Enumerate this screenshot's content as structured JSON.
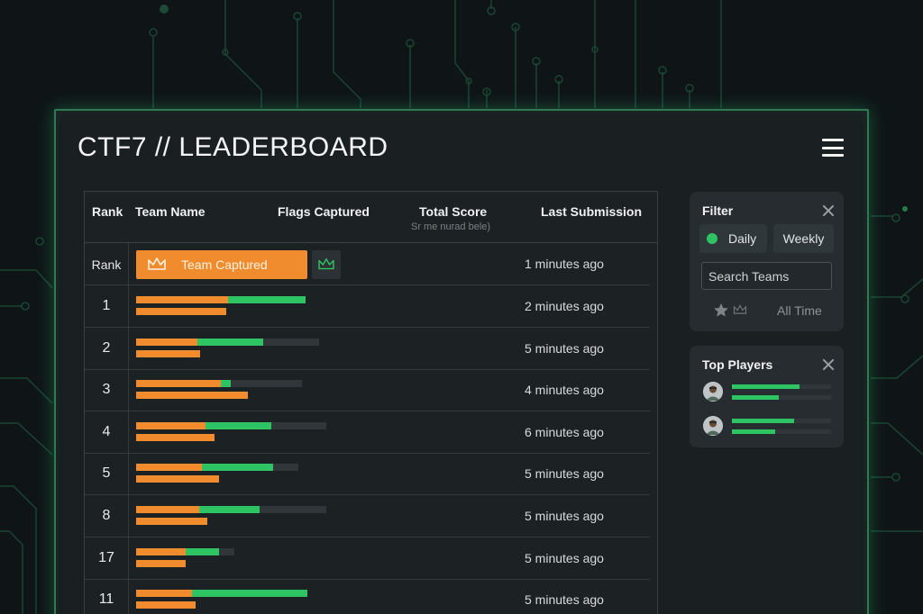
{
  "app": {
    "title": "CTF7 // LEADERBOARD"
  },
  "menu": {
    "icon": "hamburger-menu-icon"
  },
  "leaderboard": {
    "headers": {
      "rank": "Rank",
      "team_name": "Team Name",
      "flags_captured": "Flags Captured",
      "total_score": "Total Score",
      "total_score_sub": "Sr me nurad bele)",
      "last_submission": "Last Submission"
    },
    "highlight_row": {
      "rank": "Rank",
      "button_label": "Team Captured",
      "time": "1 minutes ago"
    },
    "rows": [
      {
        "rank": "1",
        "time": "2 minutes ago",
        "orange": 0.54,
        "green": 0.46,
        "track": 0,
        "orange2": 0.38
      },
      {
        "rank": "2",
        "time": "5 minutes ago",
        "orange": 0.36,
        "green": 0.39,
        "track": 0.33,
        "orange2": 0.27
      },
      {
        "rank": "3",
        "time": "4 minutes ago",
        "orange": 0.5,
        "green": 0.06,
        "track": 0.42,
        "orange2": 0.47
      },
      {
        "rank": "4",
        "time": "6 minutes ago",
        "orange": 0.41,
        "green": 0.39,
        "track": 0.32,
        "orange2": 0.33
      },
      {
        "rank": "5",
        "time": "5 minutes ago",
        "orange": 0.39,
        "green": 0.42,
        "track": 0.15,
        "orange2": 0.35
      },
      {
        "rank": "8",
        "time": "5 minutes ago",
        "orange": 0.37,
        "green": 0.36,
        "track": 0.39,
        "orange2": 0.3
      },
      {
        "rank": "17",
        "time": "5 minutes ago",
        "orange": 0.29,
        "green": 0.2,
        "track": 0.09,
        "orange2": 0.21
      },
      {
        "rank": "11",
        "time": "5 minutes ago",
        "orange": 0.33,
        "green": 0.68,
        "track": 0,
        "orange2": 0.25
      }
    ]
  },
  "filter": {
    "title": "Filter",
    "daily_label": "Daily",
    "weekly_label": "Weekly",
    "search_placeholder": "Search Teams",
    "all_time_label": "All Time"
  },
  "top_players": {
    "title": "Top Players",
    "players": [
      {
        "bar1": 0.72,
        "bar2": 0.5
      },
      {
        "bar1": 0.66,
        "bar2": 0.46
      }
    ]
  },
  "colors": {
    "accent_orange": "#f08c2e",
    "accent_green": "#2fc463",
    "frame_glow": "#2f7a52"
  }
}
